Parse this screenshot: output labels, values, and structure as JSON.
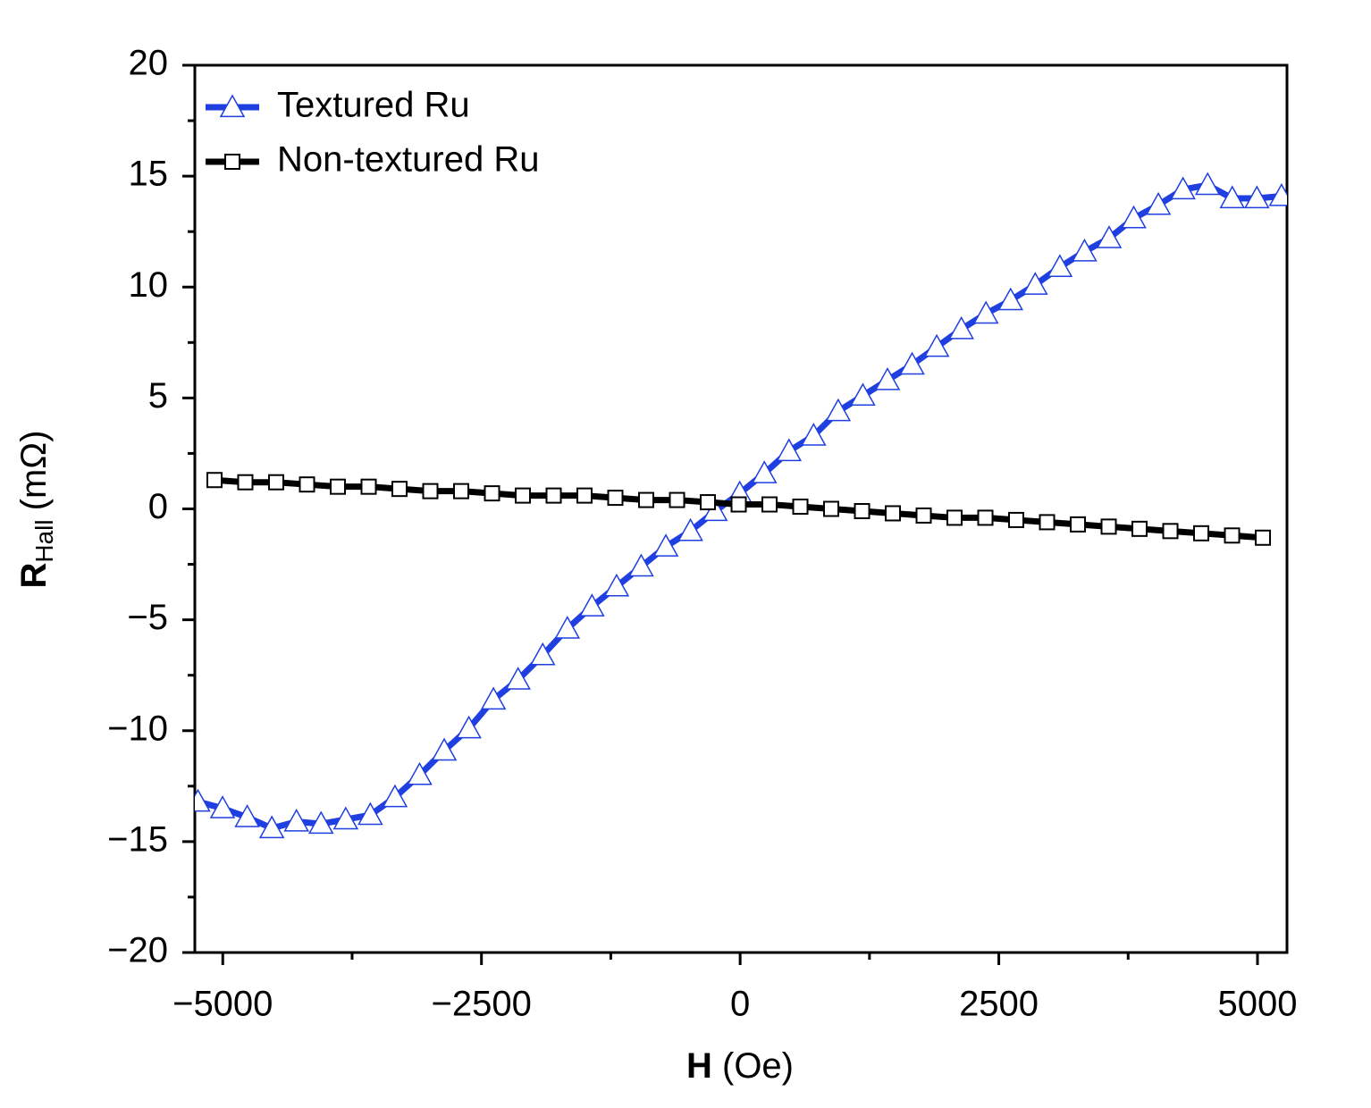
{
  "chart_data": {
    "type": "line",
    "xlabel": [
      "H",
      "(Oe)"
    ],
    "ylabel": [
      "R",
      "Hall",
      "(mΩ)"
    ],
    "xlim": [
      -5270,
      5285
    ],
    "ylim": [
      -20,
      20
    ],
    "xticks": [
      {
        "value": -5000,
        "label": "−5000"
      },
      {
        "value": -2500,
        "label": "−2500"
      },
      0,
      2500,
      5000
    ],
    "xminorticks": [
      -3750,
      -1250,
      1250,
      3750
    ],
    "yticks": [
      {
        "value": -20,
        "label": "−20"
      },
      {
        "value": -15,
        "label": "−15"
      },
      {
        "value": -10,
        "label": "−10"
      },
      {
        "value": -5,
        "label": "−5"
      },
      0,
      5,
      10,
      15,
      20
    ],
    "yminorticks": [
      -17.5,
      -12.5,
      -7.5,
      -2.5,
      2.5,
      7.5,
      12.5,
      17.5
    ],
    "legend": "upper left",
    "series": [
      {
        "name": "Textured Ru",
        "color": "#1f3fe0",
        "marker": "triangle",
        "x": [
          -5240,
          -5002,
          -4764,
          -4526,
          -4288,
          -4050,
          -3812,
          -3574,
          -3336,
          -3098,
          -2860,
          -2622,
          -2384,
          -2146,
          -1908,
          -1670,
          -1432,
          -1194,
          -956,
          -718,
          -480,
          -242,
          -4,
          234,
          472,
          710,
          948,
          1186,
          1424,
          1662,
          1900,
          2138,
          2376,
          2614,
          2852,
          3090,
          3328,
          3566,
          3804,
          4042,
          4280,
          4518,
          4756,
          4994,
          5232
        ],
        "values": [
          -13.2,
          -13.5,
          -13.9,
          -14.4,
          -14.1,
          -14.2,
          -14.0,
          -13.8,
          -13.0,
          -12.0,
          -10.9,
          -9.9,
          -8.6,
          -7.7,
          -6.6,
          -5.4,
          -4.4,
          -3.5,
          -2.6,
          -1.7,
          -1.0,
          -0.1,
          0.7,
          1.6,
          2.6,
          3.3,
          4.4,
          5.1,
          5.8,
          6.5,
          7.3,
          8.1,
          8.8,
          9.4,
          10.1,
          10.9,
          11.6,
          12.2,
          13.1,
          13.7,
          14.4,
          14.6,
          14.0,
          14.0,
          14.1
        ]
      },
      {
        "name": "Non-textured Ru",
        "color": "#000000",
        "marker": "square",
        "x": [
          -5080,
          -4782,
          -4484,
          -4186,
          -3888,
          -3590,
          -3292,
          -2994,
          -2696,
          -2398,
          -2100,
          -1802,
          -1504,
          -1206,
          -908,
          -610,
          -312,
          -14,
          284,
          582,
          880,
          1178,
          1476,
          1774,
          2072,
          2370,
          2668,
          2966,
          3264,
          3562,
          3860,
          4158,
          4456,
          4754,
          5052
        ],
        "values": [
          1.3,
          1.2,
          1.2,
          1.1,
          1.0,
          1.0,
          0.9,
          0.8,
          0.8,
          0.7,
          0.6,
          0.6,
          0.6,
          0.5,
          0.4,
          0.4,
          0.3,
          0.2,
          0.2,
          0.1,
          0.0,
          -0.1,
          -0.2,
          -0.3,
          -0.4,
          -0.4,
          -0.5,
          -0.6,
          -0.7,
          -0.8,
          -0.9,
          -1.0,
          -1.1,
          -1.2,
          -1.3
        ]
      }
    ]
  }
}
